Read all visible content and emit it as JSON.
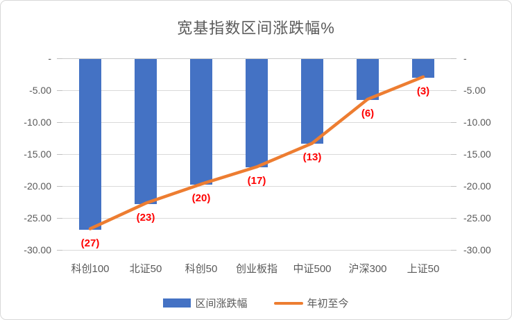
{
  "title": "宽基指数区间涨跌幅%",
  "colors": {
    "bar": "#4472c4",
    "line": "#ed7d31",
    "data_label": "#ff0000",
    "text": "#595959",
    "gridline": "#d9d9d9"
  },
  "chart_data": {
    "type": "bar",
    "subtype": "bar+line combo",
    "title": "宽基指数区间涨跌幅%",
    "categories": [
      "科创100",
      "北证50",
      "科创50",
      "创业板指",
      "中证500",
      "沪深300",
      "上证50"
    ],
    "series": [
      {
        "name": "区间涨跌幅",
        "type": "bar",
        "color": "#4472c4",
        "values": [
          -26.7,
          -22.7,
          -19.7,
          -17.0,
          -13.3,
          -6.4,
          -2.9
        ]
      },
      {
        "name": "年初至今",
        "type": "line",
        "color": "#ed7d31",
        "values": [
          -26.7,
          -22.7,
          -19.7,
          -17.0,
          -13.3,
          -6.4,
          -2.9
        ],
        "data_labels": [
          "(27)",
          "(23)",
          "(20)",
          "(17)",
          "(13)",
          "(6)",
          "(3)"
        ],
        "data_label_color": "#ff0000"
      }
    ],
    "y_axis": {
      "min": -30,
      "max": 0,
      "tick_values": [
        0,
        -5,
        -10,
        -15,
        -20,
        -25,
        -30
      ],
      "tick_labels": [
        "-",
        "-5.00",
        "-10.00",
        "-15.00",
        "-20.00",
        "-25.00",
        "-30.00"
      ],
      "sides": "both"
    },
    "grid": true,
    "legend_position": "bottom",
    "legend": [
      "区间涨跌幅",
      "年初至今"
    ]
  }
}
